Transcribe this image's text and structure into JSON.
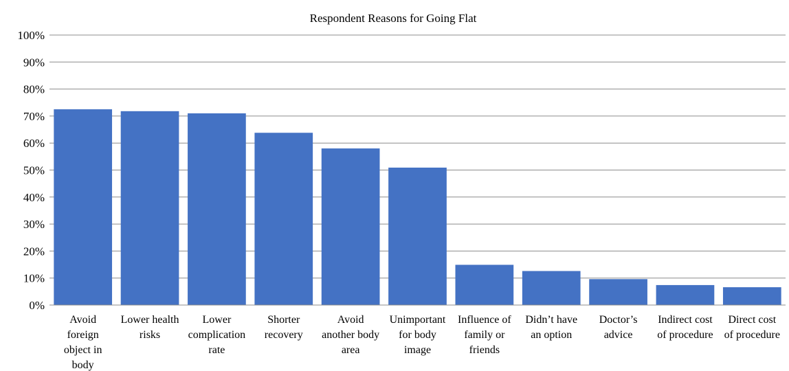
{
  "chart_data": {
    "type": "bar",
    "title": "Respondent Reasons for Going Flat",
    "xlabel": "",
    "ylabel": "",
    "ylim": [
      0,
      100
    ],
    "yticks": [
      "0%",
      "10%",
      "20%",
      "30%",
      "40%",
      "50%",
      "60%",
      "70%",
      "80%",
      "90%",
      "100%"
    ],
    "grid": true,
    "legend": "none",
    "bar_color": "#4472c4",
    "categories": [
      [
        "Avoid",
        "foreign",
        "object in",
        "body"
      ],
      [
        "Lower health",
        "risks"
      ],
      [
        "Lower",
        "complication",
        "rate"
      ],
      [
        "Shorter",
        "recovery"
      ],
      [
        "Avoid",
        "another body",
        "area"
      ],
      [
        "Unimportant",
        "for body",
        "image"
      ],
      [
        "Influence of",
        "family or",
        "friends"
      ],
      [
        "Didn’t have",
        "an option"
      ],
      [
        "Doctor’s",
        "advice"
      ],
      [
        "Indirect cost",
        "of procedure"
      ],
      [
        "Direct cost",
        "of procedure"
      ]
    ],
    "values": [
      72.5,
      71.8,
      71.0,
      63.8,
      58.0,
      50.9,
      14.9,
      12.6,
      9.6,
      7.4,
      6.6
    ]
  }
}
